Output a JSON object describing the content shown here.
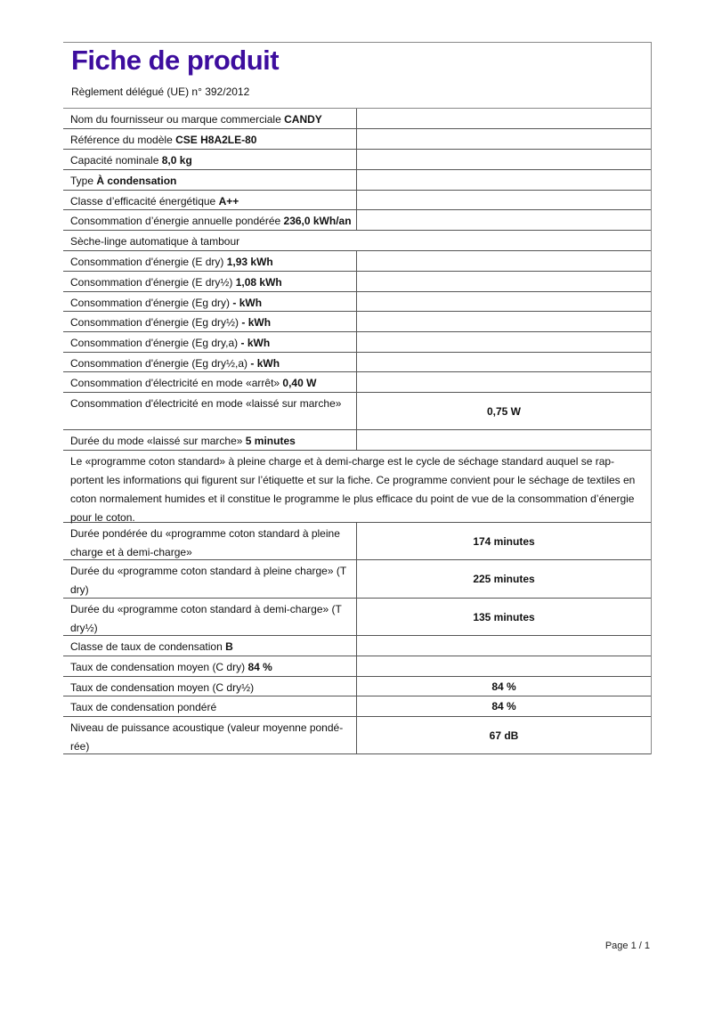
{
  "title": "Fiche de produit",
  "subtitle": "Règlement délégué (UE) n° 392/2012",
  "rows": [
    {
      "label": "Nom du fournisseur ou marque commerciale",
      "value": "CANDY",
      "right": ""
    },
    {
      "label": "Référence du modèle",
      "value": "CSE H8A2LE-80",
      "right": ""
    },
    {
      "label": "Capacité nominale",
      "value": "8,0 kg",
      "right": ""
    },
    {
      "label": "Type",
      "value": "À condensation",
      "right": ""
    },
    {
      "label": "Classe d’efficacité énergétique",
      "value": "A++",
      "right": ""
    },
    {
      "label": "Consommation d’énergie annuelle pondérée",
      "value": "236,0 kWh/an",
      "right": ""
    },
    {
      "label": "Sèche-linge automatique à tambour",
      "value": "",
      "full": true
    },
    {
      "label": "Consommation d'énergie (E dry)",
      "value": "1,93 kWh",
      "right": ""
    },
    {
      "label": "Consommation d'énergie (E dry½)",
      "value": "1,08 kWh",
      "right": ""
    },
    {
      "label": "Consommation d'énergie (Eg dry)",
      "value": "- kWh",
      "right": ""
    },
    {
      "label": "Consommation d'énergie (Eg dry½)",
      "value": "- kWh",
      "right": ""
    },
    {
      "label": "Consommation d'énergie (Eg dry,a)",
      "value": "- kWh",
      "right": ""
    },
    {
      "label": "Consommation d'énergie (Eg dry½,a)",
      "value": "- kWh",
      "right": ""
    },
    {
      "label": "Consommation d'électricité en mode «arrêt»",
      "value": "0,40 W",
      "right": ""
    },
    {
      "label": "Consommation d'électricité en mode «laissé sur marche»",
      "value": "",
      "right": "0,75 W"
    },
    {
      "label": "Durée du mode «laissé sur marche»",
      "value": "5 minutes",
      "right": ""
    },
    {
      "label": "Le «programme coton standard» à pleine charge et à demi-charge est le cycle de séchage standard auquel se rap­portent les informations qui figurent sur l’étiquette et sur la fiche. Ce programme convient pour le séchage de tex­tiles en coton normalement humides et il constitue le programme le plus efficace du point de vue de la consomma­tion d’énergie pour le coton.",
      "value": "",
      "full": true
    },
    {
      "label": "Durée pondérée du «programme coton standard à pleine charge et à demi-charge»",
      "value": "",
      "right": "174 minutes"
    },
    {
      "label": "Durée du «programme coton standard à pleine charge» (T dry)",
      "value": "",
      "right": "225 minutes"
    },
    {
      "label": "Durée du «programme coton standard à demi-charge» (T dry½)",
      "value": "",
      "right": "135 minutes"
    },
    {
      "label": "Classe de taux de condensation",
      "value": "B",
      "right": ""
    },
    {
      "label": "Taux de condensation moyen (C dry)",
      "value": "84 %",
      "right": ""
    },
    {
      "label": "Taux de condensation moyen (C dry½)",
      "value": "",
      "right": "84 %"
    },
    {
      "label": "Taux de condensation pondéré",
      "value": "",
      "right": "84 %"
    },
    {
      "label": "Niveau de puissance acoustique (valeur moyenne pondé­rée)",
      "value": "",
      "right": "67 dB"
    }
  ],
  "footer": "Page 1 / 1"
}
